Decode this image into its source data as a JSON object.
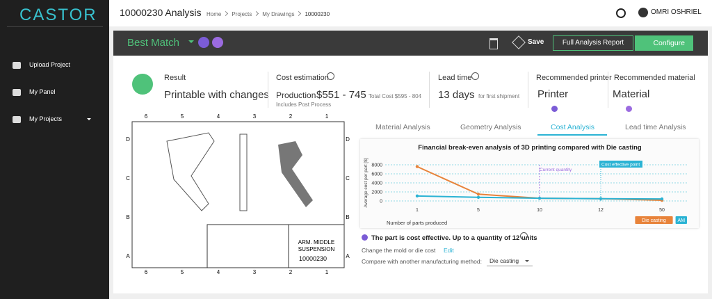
{
  "sidebar": {
    "logo": "CASTOR",
    "nav": [
      "Upload Project",
      "My Panel",
      "My Projects"
    ]
  },
  "header": {
    "title": "10000230 Analysis",
    "breadcrumbs": [
      "Home",
      "Projects",
      "My Drawings",
      "10000230"
    ],
    "user": "OMRI OSHRIEL"
  },
  "toolbar": {
    "title": "Best Match",
    "save": "Save",
    "report": "Full Analysis Report",
    "configure": "Configure"
  },
  "summary": {
    "result_label": "Result",
    "result": "Printable with changes",
    "cost_label": "Cost estimation",
    "production_label": "Production",
    "production": "$551 - 745",
    "total_cost": "Total Cost $595 - 804",
    "cost_note": "Includes Post Process",
    "lead_label": "Lead time",
    "lead": "13 days",
    "lead_note": "for first shipment",
    "printer_label": "Recommended printer",
    "printer": "Printer",
    "material_label": "Recommended material",
    "material": "Material"
  },
  "drawing": {
    "columns": [
      "6",
      "5",
      "4",
      "3",
      "2",
      "1"
    ],
    "rows": [
      "D",
      "C",
      "B",
      "A"
    ],
    "part_name": [
      "ARM. MIDDLE",
      "SUSPENSION"
    ],
    "part_number": "10000230"
  },
  "tabs": [
    "Material Analysis",
    "Geometry Analysis",
    "Cost Analysis",
    "Lead time Analysis"
  ],
  "chart_data": {
    "type": "line",
    "title": "Financial break-even analysis of 3D printing compared with Die casting",
    "y_label": "Average cost per part [$]",
    "x_label": "Number of parts produced",
    "categories": [
      "1",
      "5",
      "10",
      "12",
      "50"
    ],
    "series": [
      {
        "name": "Die casting",
        "color": "#e8833a",
        "values": [
          7600,
          1500,
          600,
          500,
          150
        ]
      },
      {
        "name": "AM",
        "color": "#2bb3d4",
        "values": [
          1100,
          800,
          600,
          500,
          450
        ]
      }
    ],
    "ylim": [
      0,
      8000
    ],
    "yticks": [
      0,
      2000,
      4000,
      6000,
      8000
    ],
    "grid": true,
    "annotations": [
      "Current quantity",
      "Cost effective point"
    ],
    "legend": "bottom-right"
  },
  "footer": {
    "effective": "The part is cost effective. Up to a quantity of 12 units",
    "mold": "Change the mold or die cost",
    "edit": "Edit",
    "compare": "Compare with another manufacturing method:",
    "method": "Die casting"
  }
}
